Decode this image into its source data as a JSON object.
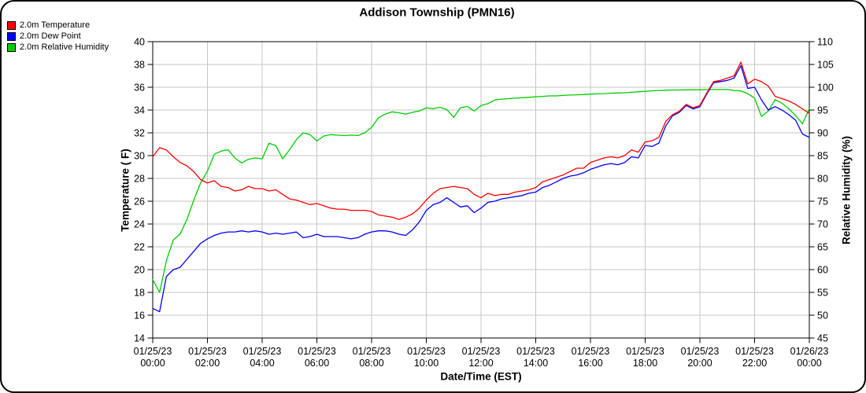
{
  "title": "Addison Township (PMN16)",
  "frame": {
    "border_color": "#000000",
    "background": "#ffffff",
    "grid_color": "#c6c6c6"
  },
  "legend": {
    "items": [
      {
        "label": "2.0m Temperature",
        "color": "#ff0000"
      },
      {
        "label": "2.0m Dew Point",
        "color": "#0000ff"
      },
      {
        "label": "2.0m Relative Humidity",
        "color": "#00cc00"
      }
    ]
  },
  "chart_data": {
    "type": "line",
    "title": "Addison Township (PMN16)",
    "xlabel": "Date/Time (EST)",
    "ylabel_left": "Temperature ( F)",
    "ylabel_right": "Relative Humidity (%)",
    "grid": true,
    "legend_position": "top-left",
    "x_range_hours": [
      0,
      24
    ],
    "y_left": {
      "min": 14,
      "max": 40,
      "step": 2
    },
    "y_right": {
      "min": 45,
      "max": 110,
      "step": 5
    },
    "x_ticks": [
      {
        "date": "01/25/23",
        "time": "00:00"
      },
      {
        "date": "01/25/23",
        "time": "02:00"
      },
      {
        "date": "01/25/23",
        "time": "04:00"
      },
      {
        "date": "01/25/23",
        "time": "06:00"
      },
      {
        "date": "01/25/23",
        "time": "08:00"
      },
      {
        "date": "01/25/23",
        "time": "10:00"
      },
      {
        "date": "01/25/23",
        "time": "12:00"
      },
      {
        "date": "01/25/23",
        "time": "14:00"
      },
      {
        "date": "01/25/23",
        "time": "16:00"
      },
      {
        "date": "01/25/23",
        "time": "18:00"
      },
      {
        "date": "01/25/23",
        "time": "20:00"
      },
      {
        "date": "01/25/23",
        "time": "22:00"
      },
      {
        "date": "01/26/23",
        "time": "00:00"
      }
    ],
    "hours": [
      0,
      0.25,
      0.5,
      0.75,
      1,
      1.25,
      1.5,
      1.75,
      2,
      2.25,
      2.5,
      2.75,
      3,
      3.25,
      3.5,
      3.75,
      4,
      4.25,
      4.5,
      4.75,
      5,
      5.25,
      5.5,
      5.75,
      6,
      6.25,
      6.5,
      6.75,
      7,
      7.25,
      7.5,
      7.75,
      8,
      8.25,
      8.5,
      8.75,
      9,
      9.25,
      9.5,
      9.75,
      10,
      10.25,
      10.5,
      10.75,
      11,
      11.25,
      11.5,
      11.75,
      12,
      12.25,
      12.5,
      12.75,
      13,
      13.25,
      13.5,
      13.75,
      14,
      14.25,
      14.5,
      14.75,
      15,
      15.25,
      15.5,
      15.75,
      16,
      16.25,
      16.5,
      16.75,
      17,
      17.25,
      17.5,
      17.75,
      18,
      18.25,
      18.5,
      18.75,
      19,
      19.25,
      19.5,
      19.75,
      20,
      20.25,
      20.5,
      20.75,
      21,
      21.25,
      21.5,
      21.75,
      22,
      22.25,
      22.5,
      22.75,
      23,
      23.25,
      23.5,
      23.75,
      24
    ],
    "series": [
      {
        "name": "2.0m Temperature",
        "color": "#ff0000",
        "axis": "left",
        "values": [
          29.9,
          30.7,
          30.5,
          29.9,
          29.4,
          29.1,
          28.6,
          27.9,
          27.6,
          27.8,
          27.3,
          27.2,
          26.9,
          27,
          27.3,
          27.1,
          27.1,
          26.9,
          27,
          26.6,
          26.2,
          26.1,
          25.9,
          25.7,
          25.8,
          25.6,
          25.4,
          25.3,
          25.3,
          25.2,
          25.2,
          25.2,
          25.1,
          24.8,
          24.7,
          24.6,
          24.4,
          24.6,
          24.9,
          25.4,
          26.1,
          26.7,
          27.1,
          27.2,
          27.3,
          27.2,
          27.1,
          26.6,
          26.3,
          26.7,
          26.5,
          26.6,
          26.6,
          26.8,
          26.9,
          27,
          27.2,
          27.7,
          27.9,
          28.1,
          28.3,
          28.6,
          28.9,
          28.9,
          29.4,
          29.6,
          29.8,
          29.9,
          29.8,
          30,
          30.5,
          30.3,
          31.2,
          31.3,
          31.6,
          33,
          33.6,
          33.9,
          34.5,
          34.2,
          34.4,
          35.5,
          36.5,
          36.6,
          36.8,
          37,
          38.2,
          36.3,
          36.7,
          36.5,
          36.1,
          35.2,
          35,
          34.8,
          34.5,
          34.1,
          33.7
        ]
      },
      {
        "name": "2.0m Dew Point",
        "color": "#0000ff",
        "axis": "left",
        "values": [
          16.6,
          16.3,
          19.4,
          20,
          20.2,
          20.9,
          21.6,
          22.3,
          22.7,
          23,
          23.2,
          23.3,
          23.3,
          23.4,
          23.3,
          23.4,
          23.3,
          23.1,
          23.2,
          23.1,
          23.2,
          23.3,
          22.8,
          22.9,
          23.1,
          22.9,
          22.9,
          22.9,
          22.8,
          22.7,
          22.8,
          23.1,
          23.3,
          23.4,
          23.4,
          23.3,
          23.1,
          23,
          23.5,
          24.2,
          25.2,
          25.7,
          25.9,
          26.3,
          25.9,
          25.5,
          25.6,
          25,
          25.4,
          25.9,
          26,
          26.2,
          26.3,
          26.4,
          26.5,
          26.7,
          26.8,
          27.2,
          27.4,
          27.7,
          28,
          28.2,
          28.3,
          28.5,
          28.8,
          29,
          29.2,
          29.3,
          29.2,
          29.4,
          29.9,
          29.8,
          30.9,
          30.8,
          31.1,
          32.6,
          33.5,
          33.8,
          34.4,
          34.1,
          34.3,
          35.4,
          36.4,
          36.5,
          36.6,
          36.8,
          37.9,
          35.9,
          36,
          34.9,
          34,
          34.3,
          34,
          33.6,
          33.1,
          31.9,
          31.6
        ]
      },
      {
        "name": "2.0m Relative Humidity",
        "color": "#00cc00",
        "axis": "right",
        "values": [
          57.8,
          55,
          62,
          66.5,
          67.8,
          71,
          75.2,
          79,
          81.6,
          85.3,
          86,
          86.3,
          84.5,
          83.4,
          84.2,
          84.5,
          84.3,
          87.7,
          87.2,
          84.3,
          86.3,
          88.5,
          90,
          89.6,
          88.2,
          89.3,
          89.6,
          89.5,
          89.4,
          89.5,
          89.4,
          90,
          91.2,
          93.3,
          94.1,
          94.6,
          94.4,
          94.1,
          94.5,
          94.8,
          95.5,
          95.3,
          95.6,
          95.1,
          93.4,
          95.5,
          95.8,
          94.8,
          96,
          96.4,
          97.2,
          97.4,
          97.5,
          97.6,
          97.7,
          97.8,
          97.9,
          98,
          98.1,
          98.1,
          98.2,
          98.3,
          98.35,
          98.4,
          98.5,
          98.55,
          98.6,
          98.7,
          98.75,
          98.8,
          98.9,
          99,
          99.1,
          99.2,
          99.3,
          99.35,
          99.4,
          99.4,
          99.45,
          99.45,
          99.45,
          99.5,
          99.5,
          99.5,
          99.5,
          99.3,
          99.2,
          98.6,
          97.6,
          93.6,
          94.8,
          97.3,
          96.5,
          95.3,
          93.8,
          92,
          95.3
        ]
      }
    ]
  }
}
